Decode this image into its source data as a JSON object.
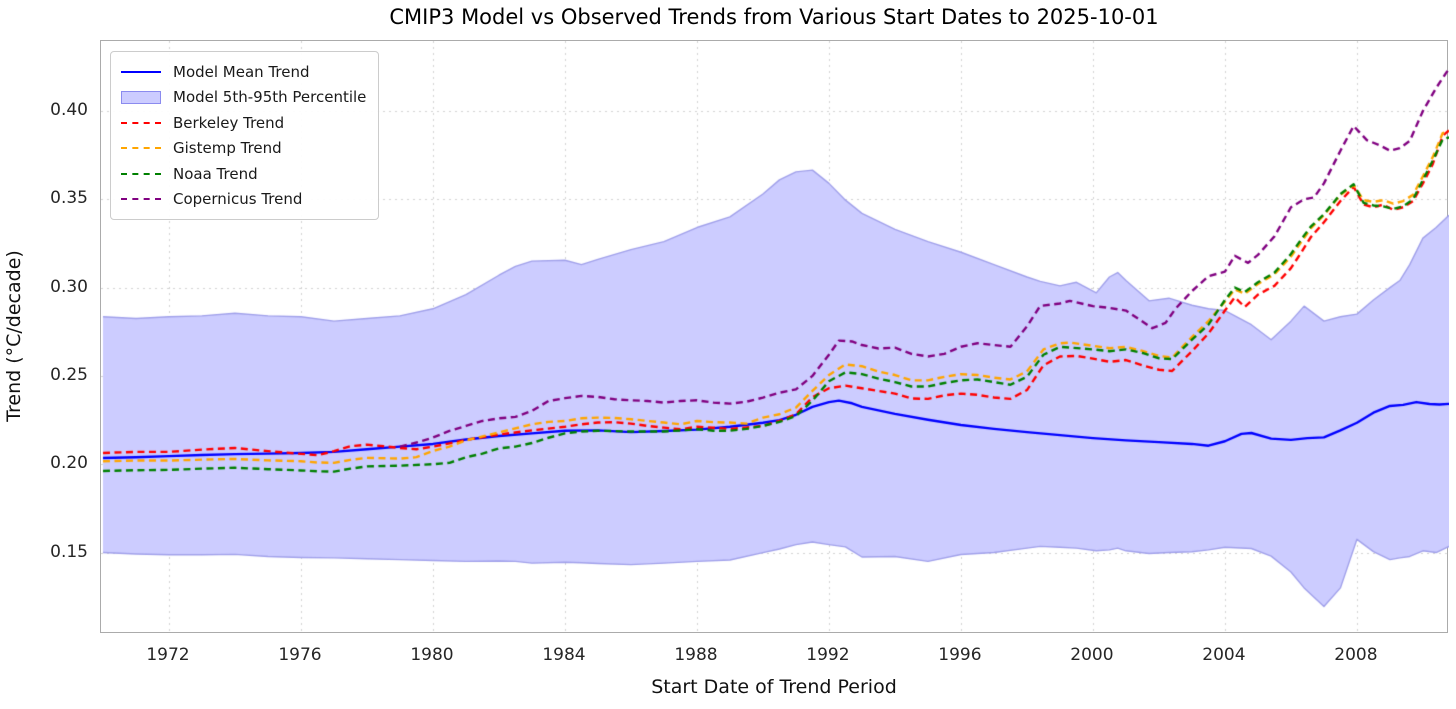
{
  "chart_data": {
    "type": "line",
    "title": "CMIP3 Model vs Observed Trends from Various Start Dates to 2025-10-01",
    "xlabel": "Start Date of Trend Period",
    "ylabel": "Trend (°C/decade)",
    "x_range": [
      1969.94,
      2010.79
    ],
    "y_range": [
      0.1039,
      0.4396
    ],
    "grid": true,
    "legend_position": "upper left",
    "x_ticks": [
      {
        "v": 1972,
        "label": "1972"
      },
      {
        "v": 1976,
        "label": "1976"
      },
      {
        "v": 1980,
        "label": "1980"
      },
      {
        "v": 1984,
        "label": "1984"
      },
      {
        "v": 1988,
        "label": "1988"
      },
      {
        "v": 1992,
        "label": "1992"
      },
      {
        "v": 1996,
        "label": "1996"
      },
      {
        "v": 2000,
        "label": "2000"
      },
      {
        "v": 2004,
        "label": "2004"
      },
      {
        "v": 2008,
        "label": "2008"
      }
    ],
    "y_ticks": [
      {
        "v": 0.15,
        "label": "0.15"
      },
      {
        "v": 0.2,
        "label": "0.20"
      },
      {
        "v": 0.25,
        "label": "0.25"
      },
      {
        "v": 0.3,
        "label": "0.30"
      },
      {
        "v": 0.35,
        "label": "0.35"
      },
      {
        "v": 0.4,
        "label": "0.40"
      }
    ],
    "colors": {
      "model_mean": "#0000ff",
      "band_fill": "#ccccff",
      "band_edge": "#a0a0ea",
      "berkeley": "#ff0000",
      "gistemp": "#ffa500",
      "noaa": "#008000",
      "copernicus": "#800080",
      "gridline": "#d2d2d2",
      "spine": "#ababab"
    },
    "band": {
      "name": "Model 5th-95th Percentile",
      "x": [
        1970,
        1971,
        1972,
        1973,
        1974,
        1975,
        1976,
        1977,
        1978,
        1979,
        1980,
        1981,
        1982,
        1982.5,
        1983,
        1984,
        1984.5,
        1985,
        1986,
        1987,
        1988,
        1989,
        1990,
        1990.5,
        1991,
        1991.5,
        1992,
        1992.5,
        1993,
        1994,
        1995,
        1996,
        1997,
        1998,
        1998.4,
        1999,
        1999.5,
        2000.1,
        2000.5,
        2000.75,
        2001,
        2001.7,
        2002.3,
        2003,
        2003.5,
        2004,
        2004.8,
        2005.4,
        2006,
        2006.4,
        2007,
        2007.5,
        2008,
        2008.5,
        2009,
        2009.3,
        2009.6,
        2010,
        2010.4,
        2010.79
      ],
      "upper": [
        0.2835,
        0.2825,
        0.2835,
        0.284,
        0.2855,
        0.284,
        0.2835,
        0.281,
        0.2825,
        0.284,
        0.288,
        0.296,
        0.307,
        0.312,
        0.315,
        0.3155,
        0.313,
        0.316,
        0.3215,
        0.326,
        0.334,
        0.34,
        0.353,
        0.361,
        0.3655,
        0.3665,
        0.359,
        0.3495,
        0.342,
        0.333,
        0.326,
        0.32,
        0.313,
        0.306,
        0.3035,
        0.301,
        0.303,
        0.297,
        0.306,
        0.3085,
        0.304,
        0.2925,
        0.294,
        0.29,
        0.288,
        0.287,
        0.279,
        0.2705,
        0.281,
        0.2895,
        0.281,
        0.2835,
        0.285,
        0.293,
        0.3,
        0.304,
        0.313,
        0.328,
        0.334,
        0.341
      ],
      "lower": [
        0.15,
        0.1492,
        0.1488,
        0.1488,
        0.149,
        0.1478,
        0.1472,
        0.147,
        0.1465,
        0.146,
        0.1455,
        0.145,
        0.1452,
        0.145,
        0.144,
        0.1445,
        0.1442,
        0.1438,
        0.1432,
        0.144,
        0.145,
        0.1458,
        0.15,
        0.152,
        0.1545,
        0.156,
        0.1545,
        0.1532,
        0.1475,
        0.1478,
        0.145,
        0.1489,
        0.15,
        0.1525,
        0.1535,
        0.153,
        0.1525,
        0.151,
        0.1515,
        0.1525,
        0.151,
        0.1495,
        0.15,
        0.1505,
        0.1515,
        0.153,
        0.1523,
        0.148,
        0.139,
        0.13,
        0.1195,
        0.13,
        0.1575,
        0.1505,
        0.146,
        0.147,
        0.1478,
        0.151,
        0.15,
        0.1535
      ]
    },
    "series": [
      {
        "name": "Model Mean Trend",
        "color": "#0000ff",
        "style": "solid",
        "x": [
          1970,
          1971,
          1972,
          1973,
          1974,
          1975,
          1976,
          1977,
          1978,
          1979,
          1980,
          1981,
          1982,
          1983,
          1984,
          1985,
          1986,
          1987,
          1988,
          1989,
          1990,
          1990.5,
          1991,
          1991.5,
          1992,
          1992.3,
          1992.7,
          1993,
          1994,
          1995,
          1996,
          1997,
          1998,
          1999,
          2000,
          2001,
          2002,
          2003,
          2003.5,
          2004,
          2004.5,
          2004.8,
          2005.4,
          2006,
          2006.5,
          2007,
          2007.5,
          2008,
          2008.5,
          2009,
          2009.4,
          2009.8,
          2010.2,
          2010.5,
          2010.79
        ],
        "y": [
          0.2035,
          0.204,
          0.2046,
          0.2052,
          0.2057,
          0.206,
          0.2064,
          0.207,
          0.2085,
          0.21,
          0.2115,
          0.214,
          0.216,
          0.2175,
          0.219,
          0.2192,
          0.2182,
          0.2188,
          0.2196,
          0.2212,
          0.2235,
          0.225,
          0.228,
          0.2325,
          0.2352,
          0.236,
          0.2345,
          0.2325,
          0.2285,
          0.2252,
          0.2222,
          0.22,
          0.2182,
          0.2165,
          0.2148,
          0.2135,
          0.2125,
          0.2115,
          0.2105,
          0.213,
          0.2172,
          0.2177,
          0.2145,
          0.2138,
          0.2148,
          0.2152,
          0.2192,
          0.2235,
          0.2292,
          0.233,
          0.2336,
          0.2352,
          0.2341,
          0.2338,
          0.2342
        ]
      },
      {
        "name": "Berkeley Trend",
        "color": "#ff0000",
        "style": "dashed",
        "x": [
          1970,
          1971,
          1972,
          1973,
          1974,
          1974.5,
          1975,
          1976,
          1976.5,
          1977,
          1977.5,
          1978,
          1978.5,
          1979,
          1979.5,
          1980,
          1980.5,
          1981,
          1982,
          1983,
          1984,
          1984.5,
          1985,
          1985.5,
          1986,
          1986.5,
          1987,
          1987.5,
          1988,
          1988.5,
          1989,
          1989.5,
          1990,
          1990.5,
          1991,
          1991.5,
          1992,
          1992.5,
          1993,
          1994,
          1994.5,
          1995,
          1995.5,
          1996,
          1996.5,
          1997,
          1997.5,
          1998,
          1998.5,
          1999,
          1999.5,
          2000,
          2000.5,
          2001,
          2001.5,
          2002,
          2002.4,
          2003,
          2003.5,
          2004,
          2004.3,
          2004.6,
          2005,
          2005.5,
          2006,
          2006.3,
          2006.6,
          2007,
          2007.5,
          2007.9,
          2008.2,
          2008.5,
          2008.8,
          2009.1,
          2009.4,
          2009.7,
          2010,
          2010.3,
          2010.6,
          2010.79
        ],
        "y": [
          0.2064,
          0.207,
          0.207,
          0.2083,
          0.2092,
          0.2083,
          0.2074,
          0.2059,
          0.2051,
          0.2074,
          0.2102,
          0.2111,
          0.2102,
          0.2092,
          0.2085,
          0.21,
          0.2118,
          0.2138,
          0.2168,
          0.2192,
          0.2212,
          0.2226,
          0.2236,
          0.2238,
          0.223,
          0.2217,
          0.2207,
          0.2198,
          0.2212,
          0.2207,
          0.22,
          0.2208,
          0.2217,
          0.2245,
          0.2283,
          0.238,
          0.243,
          0.2445,
          0.243,
          0.24,
          0.2372,
          0.237,
          0.239,
          0.24,
          0.2393,
          0.2378,
          0.237,
          0.242,
          0.256,
          0.261,
          0.2613,
          0.2598,
          0.258,
          0.259,
          0.256,
          0.2535,
          0.2528,
          0.264,
          0.274,
          0.287,
          0.2945,
          0.289,
          0.296,
          0.301,
          0.311,
          0.3195,
          0.3285,
          0.337,
          0.349,
          0.357,
          0.347,
          0.3455,
          0.347,
          0.344,
          0.3455,
          0.349,
          0.359,
          0.37,
          0.386,
          0.389
        ]
      },
      {
        "name": "Gistemp Trend",
        "color": "#ffa500",
        "style": "dashed",
        "x": [
          1970,
          1971,
          1972,
          1973,
          1974,
          1975,
          1976,
          1976.5,
          1977,
          1977.5,
          1978,
          1979,
          1979.5,
          1980,
          1980.5,
          1981,
          1982,
          1983,
          1983.5,
          1984,
          1984.5,
          1985,
          1985.5,
          1986,
          1986.5,
          1987,
          1987.5,
          1988,
          1988.5,
          1989,
          1989.5,
          1990,
          1990.5,
          1991,
          1991.5,
          1992,
          1992.5,
          1993,
          1993.5,
          1994,
          1994.5,
          1995,
          1995.5,
          1996,
          1996.5,
          1997,
          1997.5,
          1998,
          1998.5,
          1999,
          1999.3,
          2000,
          2000.5,
          2001,
          2001.5,
          2002,
          2002.4,
          2003,
          2003.5,
          2004,
          2004.3,
          2004.6,
          2005,
          2005.5,
          2006,
          2006.3,
          2006.6,
          2007,
          2007.5,
          2007.9,
          2008.2,
          2008.5,
          2008.8,
          2009.1,
          2009.4,
          2009.7,
          2010,
          2010.3,
          2010.6,
          2010.79
        ],
        "y": [
          0.2017,
          0.2021,
          0.2021,
          0.2026,
          0.203,
          0.2022,
          0.2017,
          0.201,
          0.2008,
          0.2025,
          0.2036,
          0.2032,
          0.204,
          0.2075,
          0.21,
          0.2135,
          0.218,
          0.2226,
          0.224,
          0.2245,
          0.226,
          0.2264,
          0.2262,
          0.2255,
          0.2245,
          0.2236,
          0.2226,
          0.2245,
          0.2238,
          0.2236,
          0.223,
          0.2264,
          0.2283,
          0.2321,
          0.2415,
          0.2505,
          0.2565,
          0.2555,
          0.2525,
          0.2505,
          0.2475,
          0.2475,
          0.2495,
          0.251,
          0.2505,
          0.249,
          0.248,
          0.2525,
          0.265,
          0.2685,
          0.2689,
          0.267,
          0.2657,
          0.2664,
          0.2642,
          0.2613,
          0.2604,
          0.272,
          0.281,
          0.292,
          0.299,
          0.2965,
          0.302,
          0.3075,
          0.3175,
          0.3255,
          0.3335,
          0.341,
          0.3525,
          0.358,
          0.3495,
          0.3485,
          0.3495,
          0.3475,
          0.349,
          0.3525,
          0.363,
          0.374,
          0.3875,
          0.3885
        ]
      },
      {
        "name": "Noaa Trend",
        "color": "#008000",
        "style": "dashed",
        "x": [
          1970,
          1971,
          1972,
          1973,
          1974,
          1975,
          1976,
          1976.5,
          1977,
          1977.5,
          1978,
          1979,
          1980,
          1980.5,
          1981,
          1981.5,
          1982,
          1982.5,
          1983,
          1983.5,
          1984,
          1984.5,
          1985,
          1986,
          1987,
          1988,
          1988.5,
          1989,
          1989.5,
          1990,
          1990.5,
          1991,
          1991.5,
          1992,
          1992.5,
          1993,
          1993.5,
          1994,
          1994.5,
          1995,
          1995.5,
          1996,
          1996.5,
          1997,
          1997.5,
          1998,
          1998.5,
          1999,
          2000,
          2000.5,
          2001,
          2001.5,
          2002,
          2002.4,
          2003,
          2003.5,
          2004,
          2004.3,
          2004.6,
          2005,
          2005.5,
          2006,
          2006.3,
          2006.6,
          2007,
          2007.5,
          2007.9,
          2008.2,
          2008.5,
          2008.8,
          2009.1,
          2009.4,
          2009.7,
          2010,
          2010.3,
          2010.6,
          2010.79
        ],
        "y": [
          0.1962,
          0.1966,
          0.1968,
          0.1975,
          0.198,
          0.1972,
          0.1965,
          0.196,
          0.1958,
          0.1975,
          0.1988,
          0.1992,
          0.2,
          0.2008,
          0.204,
          0.206,
          0.209,
          0.21,
          0.212,
          0.215,
          0.2175,
          0.2185,
          0.219,
          0.2185,
          0.2185,
          0.2198,
          0.219,
          0.219,
          0.22,
          0.2217,
          0.224,
          0.2273,
          0.236,
          0.247,
          0.252,
          0.251,
          0.2485,
          0.2465,
          0.244,
          0.244,
          0.246,
          0.2475,
          0.248,
          0.2465,
          0.245,
          0.2495,
          0.262,
          0.2665,
          0.265,
          0.264,
          0.265,
          0.263,
          0.26,
          0.2595,
          0.2705,
          0.279,
          0.293,
          0.3,
          0.2975,
          0.303,
          0.3085,
          0.319,
          0.327,
          0.3345,
          0.3415,
          0.353,
          0.3585,
          0.348,
          0.3465,
          0.346,
          0.3445,
          0.346,
          0.35,
          0.361,
          0.372,
          0.384,
          0.385
        ]
      },
      {
        "name": "Copernicus Trend",
        "color": "#800080",
        "style": "dashed",
        "x": [
          1979,
          1979.5,
          1980,
          1980.5,
          1981,
          1981.5,
          1982,
          1982.5,
          1983,
          1983.5,
          1984,
          1984.5,
          1985,
          1985.5,
          1986,
          1986.5,
          1987,
          1987.5,
          1988,
          1988.5,
          1989,
          1989.5,
          1990,
          1990.5,
          1991,
          1991.5,
          1992,
          1992.3,
          1992.7,
          1993,
          1993.5,
          1994,
          1994.5,
          1995,
          1995.5,
          1996,
          1996.5,
          1997,
          1997.5,
          1998,
          1998.4,
          1999,
          1999.3,
          2000,
          2000.5,
          2001,
          2001.8,
          2002.2,
          2002.5,
          2003,
          2003.5,
          2004,
          2004.3,
          2004.7,
          2005,
          2005.5,
          2006,
          2006.4,
          2006.7,
          2007,
          2007.5,
          2007.9,
          2008.3,
          2008.7,
          2009,
          2009.3,
          2009.6,
          2010,
          2010.4,
          2010.79
        ],
        "y": [
          0.21,
          0.2123,
          0.2151,
          0.2189,
          0.2217,
          0.2245,
          0.226,
          0.2268,
          0.2302,
          0.2358,
          0.2374,
          0.2387,
          0.2381,
          0.2368,
          0.2362,
          0.2358,
          0.2349,
          0.2358,
          0.2362,
          0.2349,
          0.2343,
          0.2354,
          0.2377,
          0.2405,
          0.2424,
          0.25,
          0.262,
          0.27,
          0.2695,
          0.2675,
          0.2655,
          0.266,
          0.2625,
          0.261,
          0.2625,
          0.2665,
          0.2685,
          0.2675,
          0.2665,
          0.278,
          0.2896,
          0.291,
          0.2925,
          0.2895,
          0.2885,
          0.287,
          0.277,
          0.28,
          0.288,
          0.298,
          0.3065,
          0.309,
          0.318,
          0.314,
          0.3185,
          0.329,
          0.3455,
          0.35,
          0.351,
          0.359,
          0.3775,
          0.3915,
          0.3835,
          0.3805,
          0.3775,
          0.379,
          0.383,
          0.4,
          0.413,
          0.424
        ]
      }
    ],
    "legend": [
      {
        "label": "Model Mean Trend",
        "color": "#0000ff",
        "swatch": "line"
      },
      {
        "label": "Model 5th-95th Percentile",
        "color": "#ccccff",
        "swatch": "patch"
      },
      {
        "label": "Berkeley Trend",
        "color": "#ff0000",
        "swatch": "dashed"
      },
      {
        "label": "Gistemp Trend",
        "color": "#ffa500",
        "swatch": "dashed"
      },
      {
        "label": "Noaa Trend",
        "color": "#008000",
        "swatch": "dashed"
      },
      {
        "label": "Copernicus Trend",
        "color": "#800080",
        "swatch": "dashed"
      }
    ]
  }
}
